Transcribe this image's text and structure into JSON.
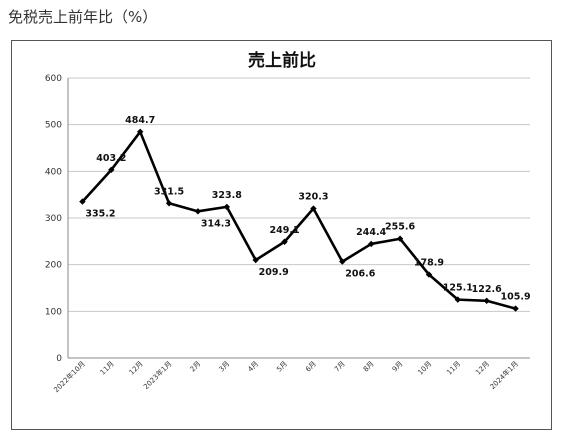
{
  "page": {
    "heading": "免税売上前年比（%）"
  },
  "chart_data": {
    "type": "line",
    "title": "売上前比",
    "xlabel": "",
    "ylabel": "",
    "ylim": [
      0,
      600
    ],
    "yticks": [
      0,
      100,
      200,
      300,
      400,
      500,
      600
    ],
    "grid": true,
    "legend": "none",
    "categories": [
      "2022年10月",
      "11月",
      "12月",
      "2023年1月",
      "2月",
      "3月",
      "4月",
      "5月",
      "6月",
      "7月",
      "8月",
      "9月",
      "10月",
      "11月",
      "12月",
      "2024年1月"
    ],
    "series": [
      {
        "values": [
          335.2,
          403.2,
          484.7,
          331.5,
          314.3,
          323.8,
          209.9,
          249.1,
          320.3,
          206.6,
          244.4,
          255.6,
          178.9,
          125.1,
          122.6,
          105.9
        ],
        "color": "#000000"
      }
    ]
  }
}
